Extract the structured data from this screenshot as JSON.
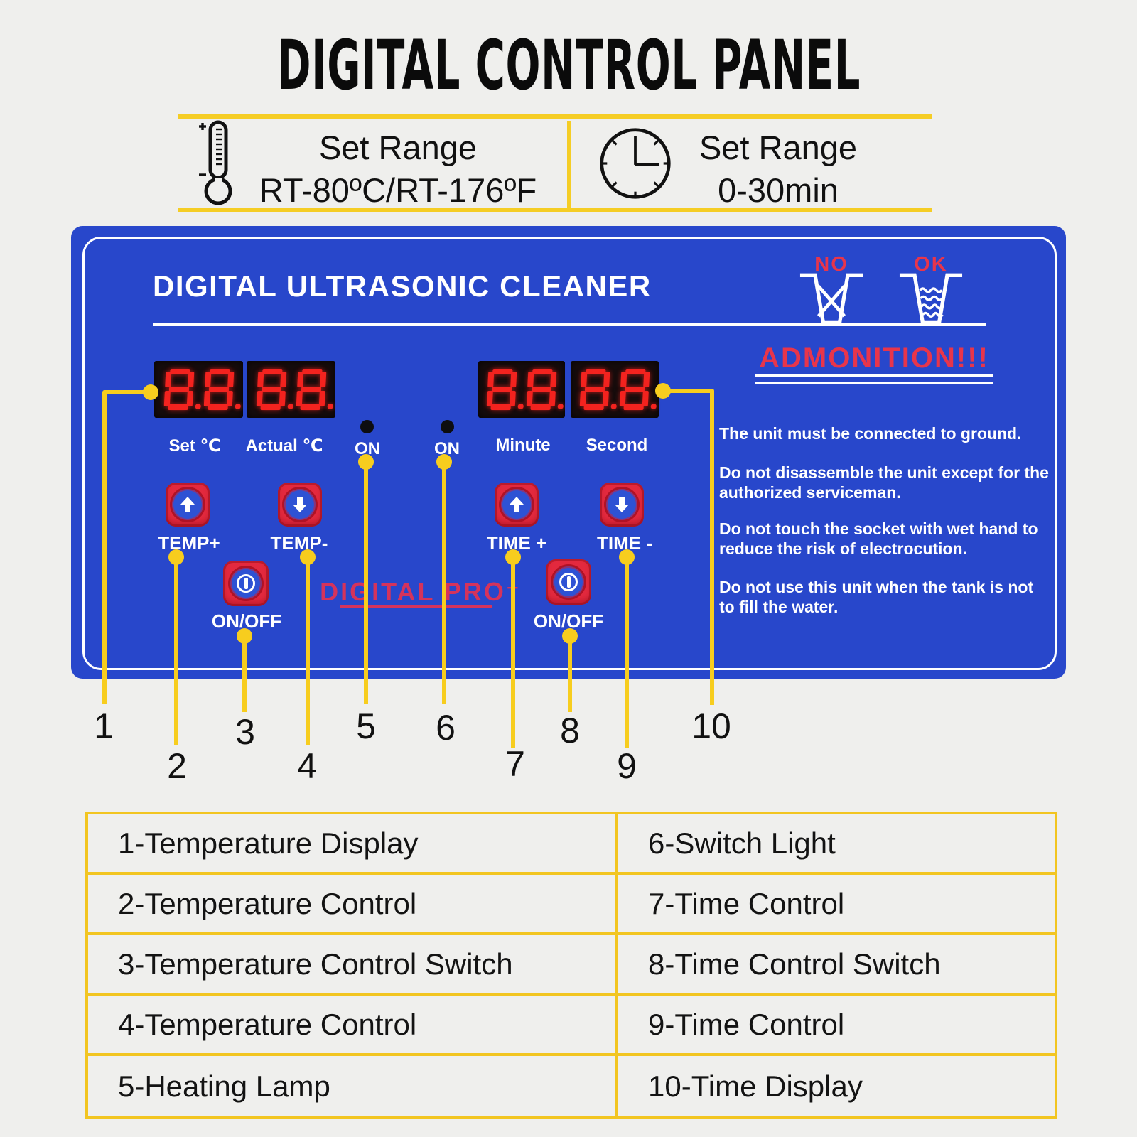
{
  "page_title": "DIGITAL CONTROL PANEL",
  "spec_bar": {
    "temperature": {
      "icon": "thermometer-icon",
      "title": "Set Range",
      "range": "RT-80ºC/RT-176ºF"
    },
    "time": {
      "icon": "clock-icon",
      "title": "Set Range",
      "range": "0-30min"
    }
  },
  "panel": {
    "title": "DIGITAL ULTRASONIC CLEANER",
    "wash_icons": {
      "no": "NO",
      "ok": "OK"
    },
    "displays": {
      "digits": [
        [
          "8",
          "8"
        ],
        [
          "8",
          "8"
        ],
        [
          "8",
          "8"
        ],
        [
          "8",
          "8"
        ]
      ],
      "temp_labels": [
        "Set ℃",
        "Actual ℃"
      ],
      "indicator_labels": [
        "ON",
        "ON"
      ],
      "time_labels": [
        "Minute",
        "Second"
      ]
    },
    "buttons": {
      "temp_plus": "TEMP+",
      "temp_minus": "TEMP-",
      "temp_power": "ON/OFF",
      "time_plus": "TIME +",
      "time_minus": "TIME -",
      "time_power": "ON/OFF"
    },
    "brand": "DIGITAL PRO⁺",
    "admonition": {
      "title": "ADMONITION!!!",
      "paragraphs": [
        "The unit must be connected to ground.",
        "Do not disassemble the unit except for the authorized serviceman.",
        "Do not touch the socket with wet hand to reduce the risk of electrocution.",
        "Do not use this unit when the tank is not to fill the water."
      ]
    }
  },
  "callouts": [
    "1",
    "2",
    "3",
    "4",
    "5",
    "6",
    "7",
    "8",
    "9",
    "10"
  ],
  "legend": {
    "rows": [
      {
        "left": "1-Temperature Display",
        "right": "6-Switch Light"
      },
      {
        "left": "2-Temperature Control",
        "right": "7-Time Control"
      },
      {
        "left": "3-Temperature Control Switch",
        "right": "8-Time Control Switch"
      },
      {
        "left": "4-Temperature Control",
        "right": "9-Time Control"
      },
      {
        "left": "5-Heating Lamp",
        "right": "10-Time Display"
      }
    ]
  },
  "colors": {
    "panel_blue": "#2847cb",
    "accent_yellow": "#f5cd25",
    "led_red": "#f3231f",
    "button_red": "#e3293e",
    "brand_red": "#d5335c",
    "admonition_red": "#e8354b"
  }
}
